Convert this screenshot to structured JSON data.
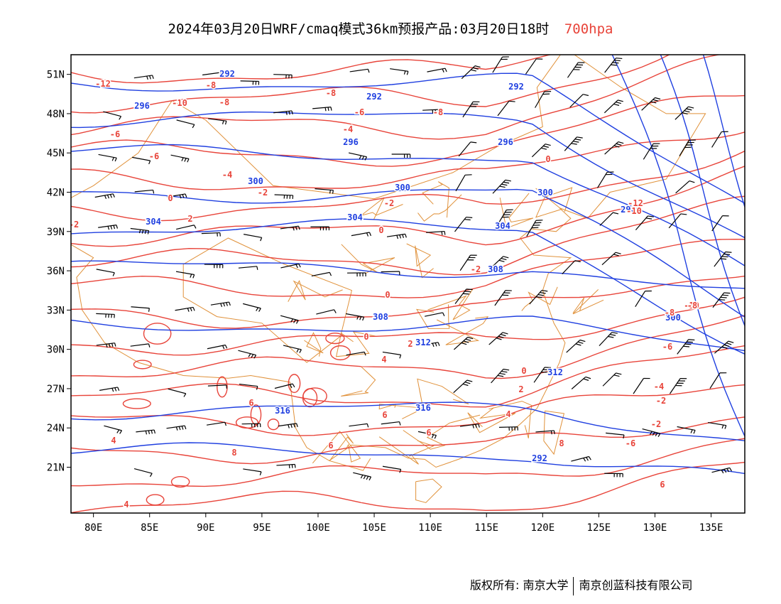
{
  "title": {
    "main": "2024年03月20日WRF/cmaq模式36km预报产品:03月20日18时",
    "level": "700hpa",
    "level_color": "#e8443a"
  },
  "map": {
    "lon_range": [
      78,
      138
    ],
    "lat_range": [
      17.5,
      52.5
    ],
    "x_ticks": [
      "80E",
      "85E",
      "90E",
      "95E",
      "100E",
      "105E",
      "110E",
      "115E",
      "120E",
      "125E",
      "130E",
      "135E"
    ],
    "y_ticks": [
      "51N",
      "48N",
      "45N",
      "42N",
      "39N",
      "36N",
      "33N",
      "30N",
      "27N",
      "24N",
      "21N"
    ],
    "layers": [
      "boundaries",
      "temperature-contours",
      "geopotential-height-contours",
      "wind-barbs"
    ],
    "colors": {
      "temperature": "#e8443a",
      "height": "#1f3fe0",
      "boundary": "#e0913a",
      "wind": "#000000"
    },
    "height_labels": [
      "292",
      "292",
      "292",
      "296",
      "296",
      "296",
      "296",
      "300",
      "300",
      "300",
      "304",
      "304",
      "304",
      "308",
      "308",
      "312",
      "312",
      "316",
      "316",
      "292",
      "300"
    ],
    "temperature_labels": [
      "-12",
      "-8",
      "-10",
      "-8",
      "-8",
      "-6",
      "-8",
      "-4",
      "-6",
      "-6",
      "-4",
      "0",
      "-2",
      "0",
      "2",
      "-2",
      "0",
      "-2",
      "-2",
      "0",
      "0",
      "2",
      "4",
      "0",
      "2",
      "4",
      "6",
      "6",
      "8",
      "6",
      "6",
      "8",
      "4",
      "4",
      "6",
      "-12",
      "-10",
      "-8",
      "-6",
      "-4",
      "-2",
      "-2",
      "-6",
      "-10",
      "-8"
    ]
  },
  "footer": {
    "left": "版权所有: 南京大学",
    "right": "南京创蓝科技有限公司"
  }
}
